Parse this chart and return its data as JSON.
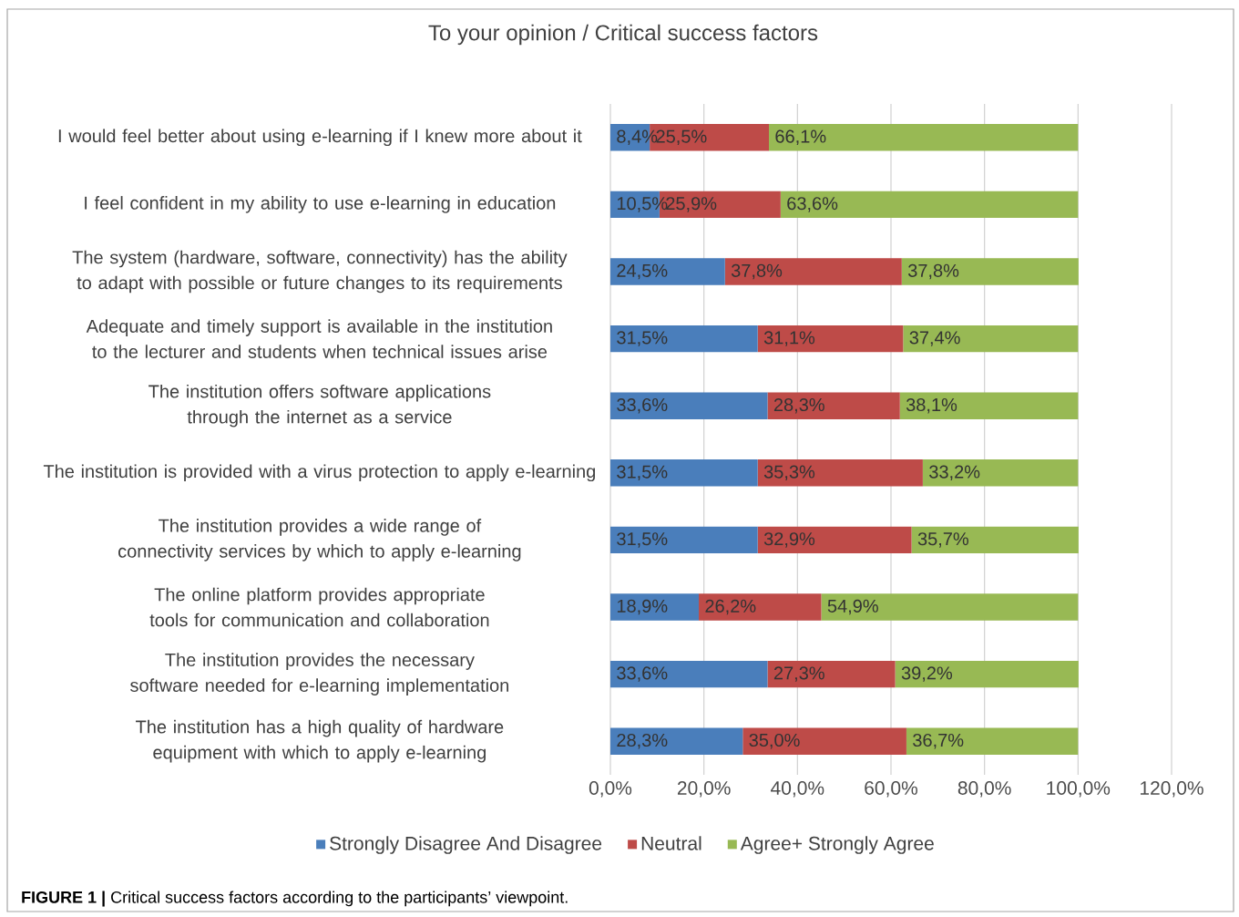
{
  "chart_data": {
    "type": "bar",
    "orientation": "horizontal",
    "stacked": true,
    "title": "To your opinion / Critical success factors",
    "categories": [
      "I would feel better about using e-learning if I knew more about it",
      "I feel confident in my ability to use e-learning in education",
      "The system (hardware, software, connectivity) has the ability to adapt with possible or future changes to its requirements",
      "Adequate and timely support is available in the institution to the lecturer and students when technical issues arise",
      "The institution offers software applications through the internet as a service",
      "The institution is provided with a virus protection to apply e-learning",
      "The institution provides a wide range of connectivity services by which to apply e-learning",
      "The online platform provides appropriate tools for communication and collaboration",
      "The institution provides the necessary software needed for e-learning implementation",
      "The institution has a high quality of hardware equipment with which to apply e-learning"
    ],
    "series": [
      {
        "name": "Strongly Disagree And Disagree",
        "color": "#4a7ebb",
        "values": [
          8.4,
          10.5,
          24.5,
          31.5,
          33.6,
          31.5,
          31.5,
          18.9,
          33.6,
          28.3
        ],
        "value_labels": [
          "8,4%",
          "10,5%",
          "24,5%",
          "31,5%",
          "33,6%",
          "31,5%",
          "31,5%",
          "18,9%",
          "33,6%",
          "28,3%"
        ]
      },
      {
        "name": "Neutral",
        "color": "#be4b48",
        "values": [
          25.5,
          25.9,
          37.8,
          31.1,
          28.3,
          35.3,
          32.9,
          26.2,
          27.3,
          35.0
        ],
        "value_labels": [
          "25,5%",
          "25,9%",
          "37,8%",
          "31,1%",
          "28,3%",
          "35,3%",
          "32,9%",
          "26,2%",
          "27,3%",
          "35,0%"
        ]
      },
      {
        "name": "Agree+ Strongly Agree",
        "color": "#98b954",
        "values": [
          66.1,
          63.6,
          37.8,
          37.4,
          38.1,
          33.2,
          35.7,
          54.9,
          39.2,
          36.7
        ],
        "value_labels": [
          "66,1%",
          "63,6%",
          "37,8%",
          "37,4%",
          "38,1%",
          "33,2%",
          "35,7%",
          "54,9%",
          "39,2%",
          "36,7%"
        ]
      }
    ],
    "xlim": [
      0,
      120
    ],
    "xticks": [
      {
        "value": 0,
        "label": "0,0%"
      },
      {
        "value": 20,
        "label": "20,0%"
      },
      {
        "value": 40,
        "label": "40,0%"
      },
      {
        "value": 60,
        "label": "60,0%"
      },
      {
        "value": 80,
        "label": "80,0%"
      },
      {
        "value": 100,
        "label": "100,0%"
      },
      {
        "value": 120,
        "label": "120,0%"
      }
    ],
    "grid": "x",
    "legend": "bottom",
    "annotations": [
      "**FIGURE 1 |** Critical success factors according to the participants’ viewpoint."
    ]
  }
}
